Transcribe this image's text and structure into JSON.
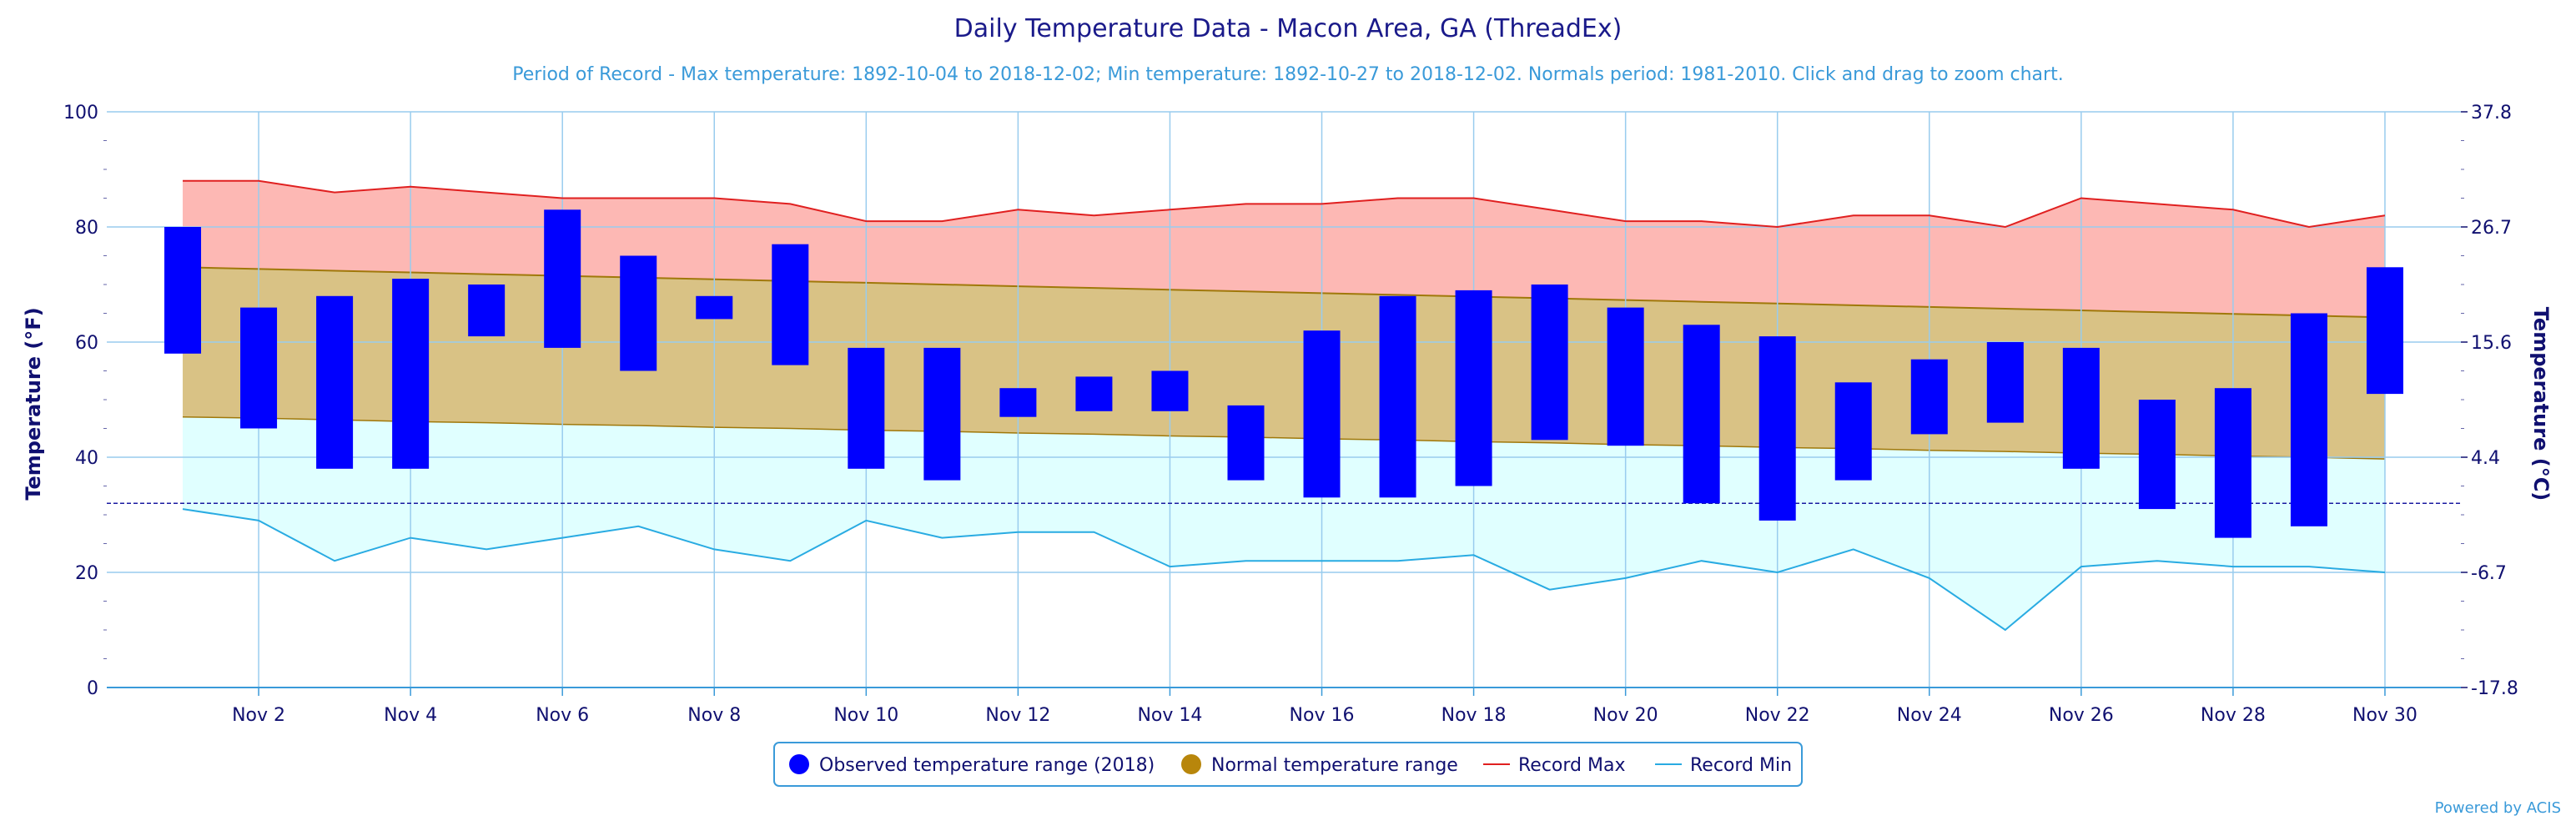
{
  "chart_data": {
    "type": "area",
    "title": "Daily Temperature Data - Macon Area, GA (ThreadEx)",
    "subtitle": "Period of Record - Max temperature: 1892-10-04 to 2018-12-02; Min temperature: 1892-10-27 to 2018-12-02. Normals period: 1981-2010. Click and drag to zoom chart.",
    "ylabel": "Temperature (°F)",
    "y2label": "Temperature (°C)",
    "ylim": [
      0,
      100
    ],
    "y_ticks": [
      0,
      20,
      40,
      60,
      80,
      100
    ],
    "y2_ticks": [
      "-17.8",
      "-6.7",
      "4.4",
      "15.6",
      "26.7",
      "37.8"
    ],
    "x_tick_labels": [
      "Nov 2",
      "Nov 4",
      "Nov 6",
      "Nov 8",
      "Nov 10",
      "Nov 12",
      "Nov 14",
      "Nov 16",
      "Nov 18",
      "Nov 20",
      "Nov 22",
      "Nov 24",
      "Nov 26",
      "Nov 28",
      "Nov 30"
    ],
    "x_tick_days": [
      2,
      4,
      6,
      8,
      10,
      12,
      14,
      16,
      18,
      20,
      22,
      24,
      26,
      28,
      30
    ],
    "days": [
      1,
      2,
      3,
      4,
      5,
      6,
      7,
      8,
      9,
      10,
      11,
      12,
      13,
      14,
      15,
      16,
      17,
      18,
      19,
      20,
      21,
      22,
      23,
      24,
      25,
      26,
      27,
      28,
      29,
      30
    ],
    "freezing_line": 32,
    "grid": true,
    "legend_position": "bottom-center",
    "series": [
      {
        "name": "Observed temperature range (2018)",
        "color": "#0000ff",
        "low": [
          58,
          45,
          38,
          38,
          61,
          59,
          55,
          64,
          56,
          38,
          36,
          47,
          48,
          48,
          36,
          33,
          33,
          35,
          43,
          42,
          32,
          29,
          36,
          44,
          46,
          38,
          31,
          26,
          28,
          51
        ],
        "high": [
          80,
          66,
          68,
          71,
          70,
          83,
          75,
          68,
          77,
          59,
          59,
          52,
          54,
          55,
          49,
          62,
          68,
          69,
          70,
          66,
          63,
          61,
          53,
          57,
          60,
          59,
          50,
          52,
          65,
          73
        ]
      },
      {
        "name": "Normal temperature range",
        "color": "#b8860b",
        "low": [
          47,
          46.8,
          46.5,
          46.2,
          46,
          45.7,
          45.5,
          45.2,
          45,
          44.7,
          44.5,
          44.2,
          44,
          43.7,
          43.5,
          43.2,
          43,
          42.7,
          42.5,
          42.2,
          42,
          41.7,
          41.5,
          41.2,
          41,
          40.7,
          40.5,
          40.2,
          40,
          39.7
        ],
        "high": [
          73,
          72.7,
          72.4,
          72.1,
          71.8,
          71.5,
          71.2,
          70.9,
          70.6,
          70.3,
          70,
          69.7,
          69.4,
          69.1,
          68.8,
          68.5,
          68.2,
          67.9,
          67.6,
          67.3,
          67,
          66.7,
          66.4,
          66.1,
          65.8,
          65.5,
          65.2,
          64.9,
          64.6,
          64.3
        ]
      },
      {
        "name": "Record Max",
        "color": "#e02020",
        "values": [
          88,
          88,
          86,
          87,
          86,
          85,
          85,
          85,
          84,
          81,
          81,
          83,
          82,
          83,
          84,
          84,
          85,
          85,
          83,
          81,
          81,
          80,
          82,
          82,
          80,
          85,
          84,
          83,
          80,
          82
        ]
      },
      {
        "name": "Record Min",
        "color": "#29abe2",
        "values": [
          31,
          29,
          22,
          26,
          24,
          26,
          28,
          24,
          22,
          29,
          26,
          27,
          27,
          21,
          22,
          22,
          22,
          23,
          17,
          19,
          22,
          20,
          24,
          19,
          10,
          21,
          22,
          21,
          21,
          20
        ]
      }
    ]
  },
  "credits": "Powered by ACIS",
  "colors": {
    "record_band": "#fdb8b4",
    "normal_band": "#d9c285",
    "low_band": "#e0ffff",
    "grid": "#99ccee",
    "freeze_line": "#1a1aa0"
  }
}
